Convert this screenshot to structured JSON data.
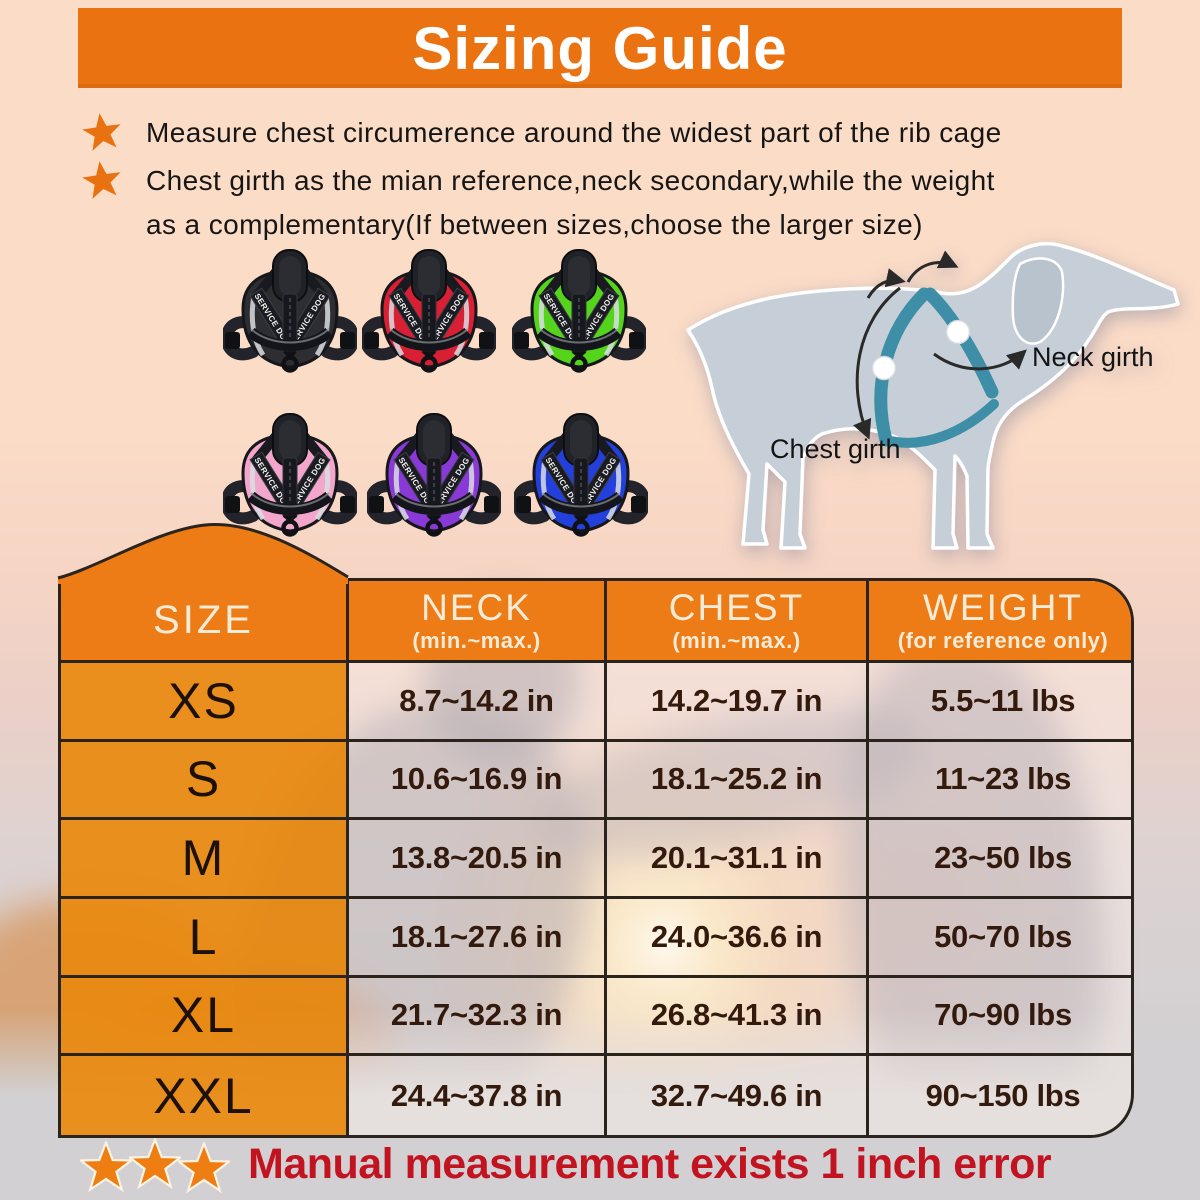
{
  "title": "Sizing Guide",
  "bullets": {
    "item1": "Measure chest circumerence around the widest part of the rib cage",
    "item2_line1": "Chest girth as the mian reference,neck secondary,while the weight",
    "item2_line2": "as a complementary(If between sizes,choose the larger size)"
  },
  "harnesses": {
    "label": "SERVICE DOG",
    "names": [
      "black",
      "red",
      "green",
      "pink",
      "purple",
      "blue"
    ],
    "colors": [
      "#2e2e32",
      "#d81f33",
      "#55d41c",
      "#f2a6cb",
      "#8939d6",
      "#2440dc"
    ]
  },
  "dog_diagram": {
    "neck_label": "Neck girth",
    "chest_label": "Chest girth"
  },
  "table": {
    "headers": {
      "size": "SIZE",
      "neck": "NECK",
      "neck_sub": "(min.~max.)",
      "chest": "CHEST",
      "chest_sub": "(min.~max.)",
      "weight": "WEIGHT",
      "weight_sub": "(for reference only)"
    },
    "rows": [
      {
        "size": "XS",
        "neck": "8.7~14.2 in",
        "chest": "14.2~19.7 in",
        "weight": "5.5~11 lbs"
      },
      {
        "size": "S",
        "neck": "10.6~16.9 in",
        "chest": "18.1~25.2 in",
        "weight": "11~23 lbs"
      },
      {
        "size": "M",
        "neck": "13.8~20.5 in",
        "chest": "20.1~31.1 in",
        "weight": "23~50 lbs"
      },
      {
        "size": "L",
        "neck": "18.1~27.6 in",
        "chest": "24.0~36.6 in",
        "weight": "50~70 lbs"
      },
      {
        "size": "XL",
        "neck": "21.7~32.3 in",
        "chest": "26.8~41.3 in",
        "weight": "70~90 lbs"
      },
      {
        "size": "XXL",
        "neck": "24.4~37.8 in",
        "chest": "32.7~49.6 in",
        "weight": "90~150 lbs"
      }
    ]
  },
  "footer": {
    "note": "Manual measurement exists 1 inch error"
  },
  "colors": {
    "banner_orange": "#ea7211",
    "header_orange": "#ee7c16",
    "size_column_orange": "#e9890e",
    "star_orange": "#e8720f",
    "note_red": "#c21320",
    "harness_teal": "#3e8ea8",
    "dog_body_gray": "#c6cfd7",
    "background_peach": "#fbdcc7"
  }
}
